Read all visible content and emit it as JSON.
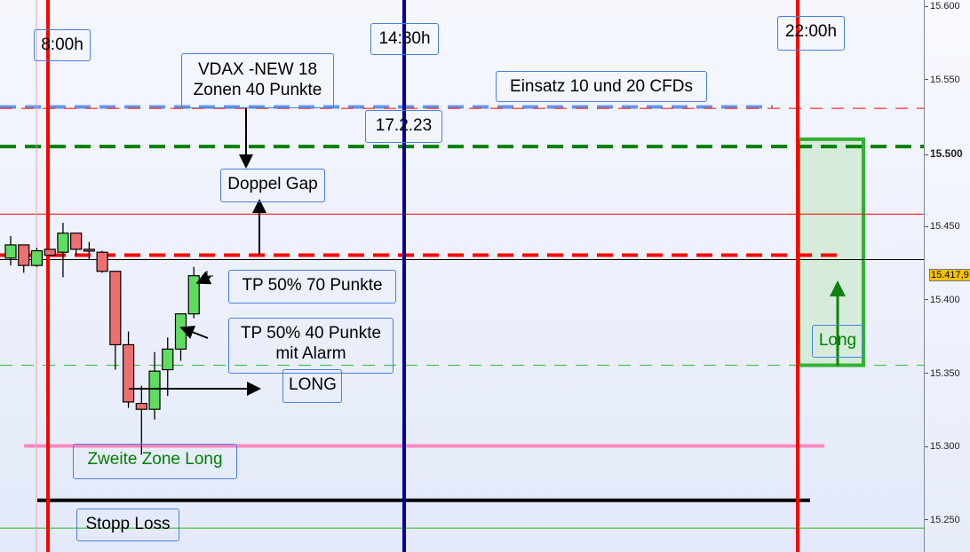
{
  "chart_data": {
    "type": "candlestick",
    "instrument_label": "VDAX -NEW 18",
    "y_axis": {
      "ylim": [
        15240,
        15605
      ],
      "ticks": [
        "15.600",
        "15.550",
        "15.500",
        "15.450",
        "15.400",
        "15.350",
        "15.300",
        "15.250"
      ],
      "tick_values": [
        15600,
        15550,
        15500,
        15450,
        15400,
        15350,
        15300,
        15250
      ],
      "bold_tick": "15.500",
      "current_price_label": "15.417,9",
      "current_price": 15417.9
    },
    "candles": [
      {
        "o": 15429,
        "h": 15444,
        "l": 15424,
        "c": 15438
      },
      {
        "o": 15438,
        "h": 15438,
        "l": 15419,
        "c": 15424
      },
      {
        "o": 15424,
        "h": 15436,
        "l": 15423,
        "c": 15434
      },
      {
        "o": 15435,
        "h": 15435,
        "l": 15431,
        "c": 15431
      },
      {
        "o": 15433,
        "h": 15453,
        "l": 15416,
        "c": 15446
      },
      {
        "o": 15446,
        "h": 15446,
        "l": 15431,
        "c": 15435
      },
      {
        "o": 15435,
        "h": 15440,
        "l": 15428,
        "c": 15434
      },
      {
        "o": 15433,
        "h": 15434,
        "l": 15419,
        "c": 15420
      },
      {
        "o": 15420,
        "h": 15420,
        "l": 15353,
        "c": 15370
      },
      {
        "o": 15370,
        "h": 15379,
        "l": 15327,
        "c": 15331
      },
      {
        "o": 15330,
        "h": 15342,
        "l": 15295,
        "c": 15326
      },
      {
        "o": 15326,
        "h": 15365,
        "l": 15319,
        "c": 15352
      },
      {
        "o": 15353,
        "h": 15375,
        "l": 15335,
        "c": 15367
      },
      {
        "o": 15367,
        "h": 15391,
        "l": 15359,
        "c": 15391
      },
      {
        "o": 15391,
        "h": 15423,
        "l": 15388,
        "c": 15417
      }
    ],
    "horizontal_lines": [
      {
        "price": 15532,
        "color": "#6495ed",
        "style": "dashed-thick"
      },
      {
        "price": 15531,
        "color": "#ff0000",
        "style": "dashed-thin"
      },
      {
        "price": 15505,
        "color": "#008000",
        "style": "dashed-thick"
      },
      {
        "price": 15459,
        "color": "#ff0000",
        "style": "solid-thin"
      },
      {
        "price": 15431,
        "color": "#ff0000",
        "style": "dashed-thick"
      },
      {
        "price": 15428,
        "color": "#000000",
        "style": "solid-thin"
      },
      {
        "price": 15356,
        "color": "#22bb22",
        "style": "dashed-thin"
      },
      {
        "price": 15301,
        "color": "#ff88c0",
        "style": "solid-thick"
      },
      {
        "price": 15264,
        "color": "#000000",
        "style": "solid-thick"
      },
      {
        "price": 15245,
        "color": "#22bb22",
        "style": "solid-thin"
      }
    ],
    "vertical_lines": [
      {
        "label": "8:00h",
        "color": "#ff0000"
      },
      {
        "label": "14:30h",
        "color": "#0000a0"
      },
      {
        "label": "22:00h",
        "color": "#ff0000"
      }
    ],
    "target_box": {
      "from": 15356,
      "to": 15510,
      "color": "#33b033"
    },
    "annotations": {
      "vdax": [
        "VDAX -NEW 18",
        "Zonen 40 Punkte"
      ],
      "einsatz": "Einsatz 10 und 20 CFDs",
      "date": "17.2.23",
      "doppel_gap": "Doppel Gap",
      "tp70": "TP 50% 70 Punkte",
      "tp40": [
        "TP 50% 40 Punkte",
        "mit Alarm"
      ],
      "long_entry": "LONG",
      "zweite_zone": "Zweite Zone Long",
      "stopp_loss": "Stopp Loss",
      "long_target": "Long"
    },
    "colors": {
      "bull": "#5fdc5f",
      "bear": "#ec7070",
      "label_border": "#4a7fd8"
    }
  }
}
